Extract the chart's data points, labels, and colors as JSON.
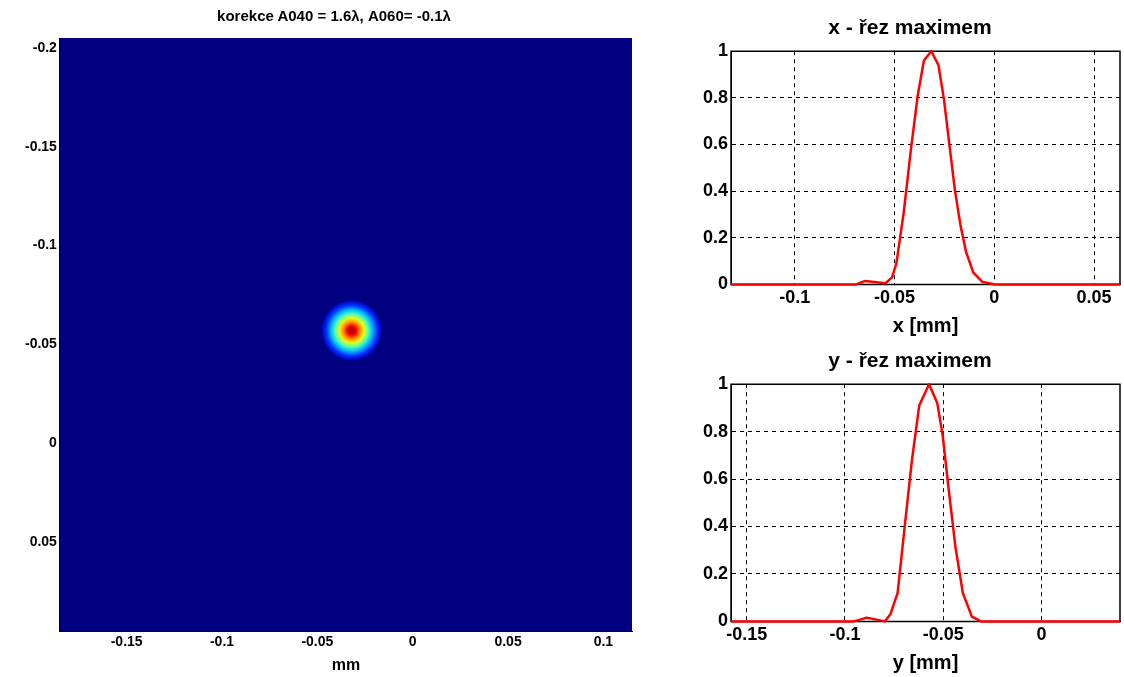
{
  "chart_data": [
    {
      "type": "scatter",
      "title": "korekce A040 = 1.6λ, A060= -0.1λ",
      "xlabel": "mm",
      "x": [
        -0.032
      ],
      "values": [
        -0.057
      ],
      "marker": "circle",
      "xlim": [
        -0.185,
        0.115
      ],
      "ylim": [
        0.095,
        -0.205
      ],
      "xticks": [
        -0.15,
        -0.1,
        -0.05,
        0,
        0.05,
        0.1
      ],
      "yticks": [
        -0.2,
        -0.15,
        -0.1,
        -0.05,
        0,
        0.05
      ]
    },
    {
      "type": "line",
      "title": "x - řez maximem",
      "xlabel": "x [mm]",
      "x": [
        -0.132,
        -0.0693,
        -0.0647,
        -0.0546,
        -0.0513,
        -0.0491,
        -0.0454,
        -0.0418,
        -0.0384,
        -0.0353,
        -0.0316,
        -0.028,
        -0.0252,
        -0.0224,
        -0.0197,
        -0.0169,
        -0.0142,
        -0.0105,
        -0.0059,
        0.0006,
        0.063
      ],
      "series": [
        {
          "color": "#ff0000",
          "values": [
            0,
            0,
            0.015,
            0.005,
            0.03,
            0.09,
            0.31,
            0.58,
            0.81,
            0.96,
            1,
            0.94,
            0.79,
            0.59,
            0.4,
            0.25,
            0.14,
            0.05,
            0.01,
            0,
            0
          ]
        }
      ],
      "xlim": [
        -0.132,
        0.063
      ],
      "ylim": [
        0,
        1
      ],
      "xticks": [
        -0.1,
        -0.05,
        0,
        0.05
      ],
      "yticks": [
        0,
        0.2,
        0.4,
        0.6,
        0.8,
        1
      ],
      "grid": true
    },
    {
      "type": "line",
      "title": "y - řez maximem",
      "xlabel": "y [mm]",
      "x": [
        -0.158,
        -0.0954,
        -0.0889,
        -0.0797,
        -0.0769,
        -0.0732,
        -0.0696,
        -0.0659,
        -0.0622,
        -0.0572,
        -0.053,
        -0.0502,
        -0.0474,
        -0.0437,
        -0.04,
        -0.0354,
        -0.0308,
        -0.0216,
        0.04
      ],
      "series": [
        {
          "color": "#ff0000",
          "values": [
            0,
            0,
            0.016,
            0,
            0.03,
            0.12,
            0.4,
            0.68,
            0.91,
            1,
            0.92,
            0.78,
            0.57,
            0.31,
            0.12,
            0.02,
            0,
            0,
            0
          ]
        }
      ],
      "xlim": [
        -0.158,
        0.04
      ],
      "ylim": [
        0,
        1
      ],
      "xticks": [
        -0.15,
        -0.1,
        -0.05,
        0
      ],
      "yticks": [
        0,
        0.2,
        0.4,
        0.6,
        0.8,
        1
      ],
      "grid": true
    }
  ]
}
